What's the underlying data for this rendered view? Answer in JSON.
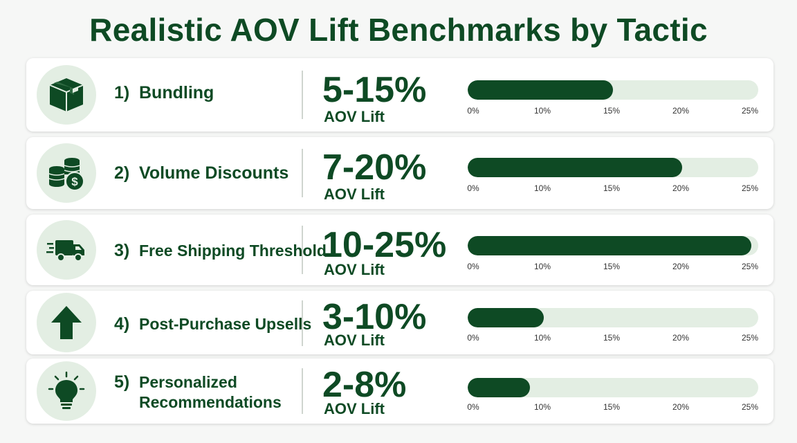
{
  "title": "Realistic AOV Lift Benchmarks by Tactic",
  "colors": {
    "accent": "#0e4a24",
    "track": "#e3eee3",
    "icon_bg": "#e3eee3"
  },
  "chart_data": {
    "type": "bar",
    "title": "Realistic AOV Lift Benchmarks by Tactic",
    "xlabel": "",
    "ylabel": "",
    "xlim": [
      0,
      25
    ],
    "ticks": [
      "0%",
      "10%",
      "15%",
      "20%",
      "25%"
    ],
    "unit": "AOV Lift",
    "categories": [
      "1) Bundling",
      "2) Volume Discounts",
      "3) Free Shipping Threshold",
      "4) Post-Purchase Upsells",
      "5) Personalized Recommendations"
    ],
    "items": [
      {
        "number": "1)",
        "name": "Bundling",
        "range_text": "5-15%",
        "sub": "AOV Lift",
        "low": 5,
        "high": 15,
        "icon": "box-icon"
      },
      {
        "number": "2)",
        "name": "Volume Discounts",
        "range_text": "7-20%",
        "sub": "AOV Lift",
        "low": 7,
        "high": 20,
        "icon": "coins-dollar-icon"
      },
      {
        "number": "3)",
        "name": "Free Shipping Threshold",
        "range_text": "10-25%",
        "sub": "AOV Lift",
        "low": 10,
        "high": 25,
        "icon": "delivery-truck-icon"
      },
      {
        "number": "4)",
        "name": "Post-Purchase Upsells",
        "range_text": "3-10%",
        "sub": "AOV Lift",
        "low": 3,
        "high": 10,
        "icon": "arrow-up-icon"
      },
      {
        "number": "5)",
        "name": "Personalized Recommendations",
        "range_text": "2-8%",
        "sub": "AOV Lift",
        "low": 2,
        "high": 8,
        "icon": "lightbulb-icon"
      }
    ]
  }
}
